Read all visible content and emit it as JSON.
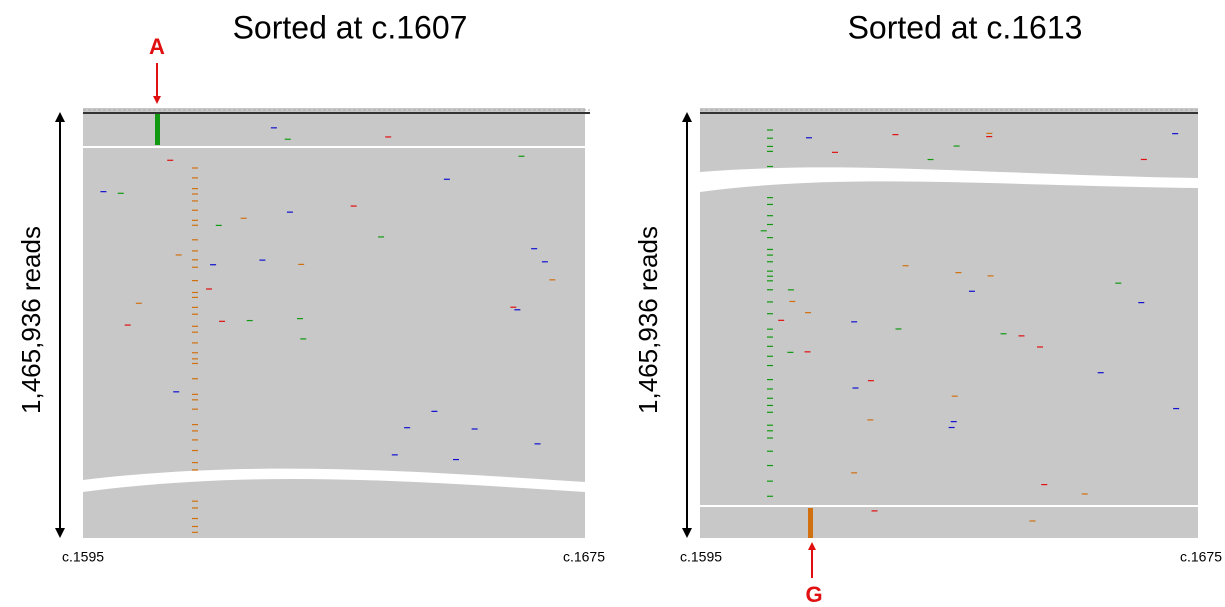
{
  "panels": [
    {
      "title": "Sorted at c.1607",
      "y_label": "1,465,936 reads",
      "x_start": "c.1595",
      "x_end": "c.1675",
      "annotation": "A"
    },
    {
      "title": "Sorted at c.1613",
      "y_label": "1,465,936 reads",
      "x_start": "c.1595",
      "x_end": "c.1675",
      "annotation": "G"
    }
  ]
}
